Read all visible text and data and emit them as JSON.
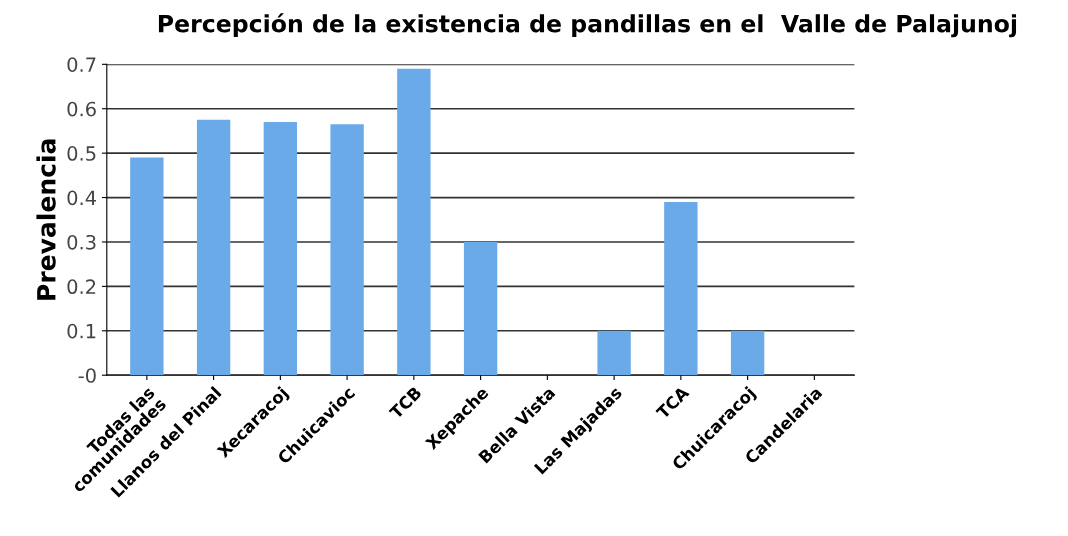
{
  "chart_data": {
    "type": "bar",
    "title": "Percepción de la existencia de pandillas en el  Valle de Palajunoj",
    "ylabel": "Prevalencia",
    "categories": [
      "Todas las\ncomunidades",
      "Llanos del Pinal",
      "Xecaracoj",
      "Chuicavioc",
      "TCB",
      "Xepache",
      "Bella Vista",
      "Las Majadas",
      "TCA",
      "Chuicaracoj",
      "Candelaria"
    ],
    "values": [
      0.49,
      0.575,
      0.57,
      0.565,
      0.69,
      0.3,
      0,
      0.1,
      0.39,
      0.1,
      0
    ],
    "color": "#6aaae8",
    "ylim": [
      0,
      0.7
    ],
    "yticks": [
      {
        "value": 0,
        "label": "-0"
      },
      0.1,
      0.2,
      0.3,
      0.4,
      0.5,
      0.6,
      0.7
    ],
    "grid": "y"
  }
}
